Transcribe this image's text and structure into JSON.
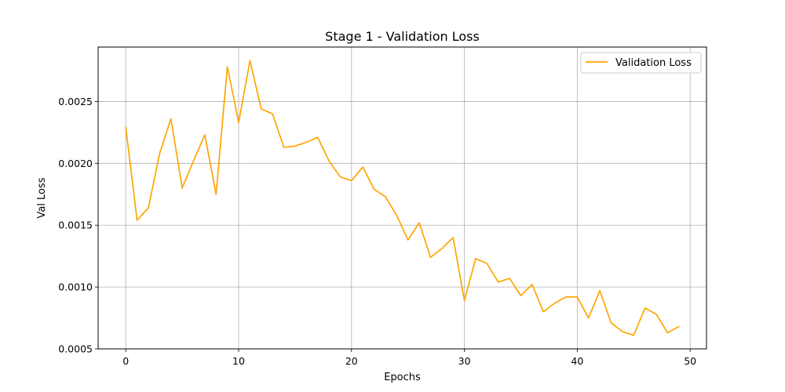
{
  "chart_data": {
    "type": "line",
    "title": "Stage 1 - Validation Loss",
    "xlabel": "Epochs",
    "ylabel": "Val Loss",
    "xlim": [
      -2.45,
      51.45
    ],
    "ylim": [
      0.0005,
      0.00294
    ],
    "xticks": [
      0,
      10,
      20,
      30,
      40,
      50
    ],
    "xtick_labels": [
      "0",
      "10",
      "20",
      "30",
      "40",
      "50"
    ],
    "yticks": [
      0.0005,
      0.001,
      0.0015,
      0.002,
      0.0025
    ],
    "ytick_labels": [
      "0.0005",
      "0.0010",
      "0.0015",
      "0.0020",
      "0.0025"
    ],
    "grid": true,
    "legend": "top-right",
    "series": [
      {
        "name": "Validation Loss",
        "color": "#FFA500",
        "x": [
          0,
          1,
          2,
          3,
          4,
          5,
          6,
          7,
          8,
          9,
          10,
          11,
          12,
          13,
          14,
          15,
          16,
          17,
          18,
          19,
          20,
          21,
          22,
          23,
          24,
          25,
          26,
          27,
          28,
          29,
          30,
          31,
          32,
          33,
          34,
          35,
          36,
          37,
          38,
          39,
          40,
          41,
          42,
          43,
          44,
          45,
          46,
          47,
          48,
          49
        ],
        "y": [
          0.00229,
          0.00154,
          0.00164,
          0.00208,
          0.00236,
          0.0018,
          0.00202,
          0.00223,
          0.00175,
          0.00278,
          0.00233,
          0.00283,
          0.00244,
          0.0024,
          0.00213,
          0.00214,
          0.00217,
          0.00221,
          0.00202,
          0.00189,
          0.00186,
          0.00197,
          0.00179,
          0.00173,
          0.00158,
          0.00138,
          0.00152,
          0.00124,
          0.00131,
          0.0014,
          0.00089,
          0.00123,
          0.00119,
          0.00104,
          0.00107,
          0.00093,
          0.00102,
          0.0008,
          0.00087,
          0.00092,
          0.00092,
          0.00075,
          0.00097,
          0.00071,
          0.00064,
          0.00061,
          0.00083,
          0.00078,
          0.00063,
          0.00068
        ]
      }
    ]
  }
}
